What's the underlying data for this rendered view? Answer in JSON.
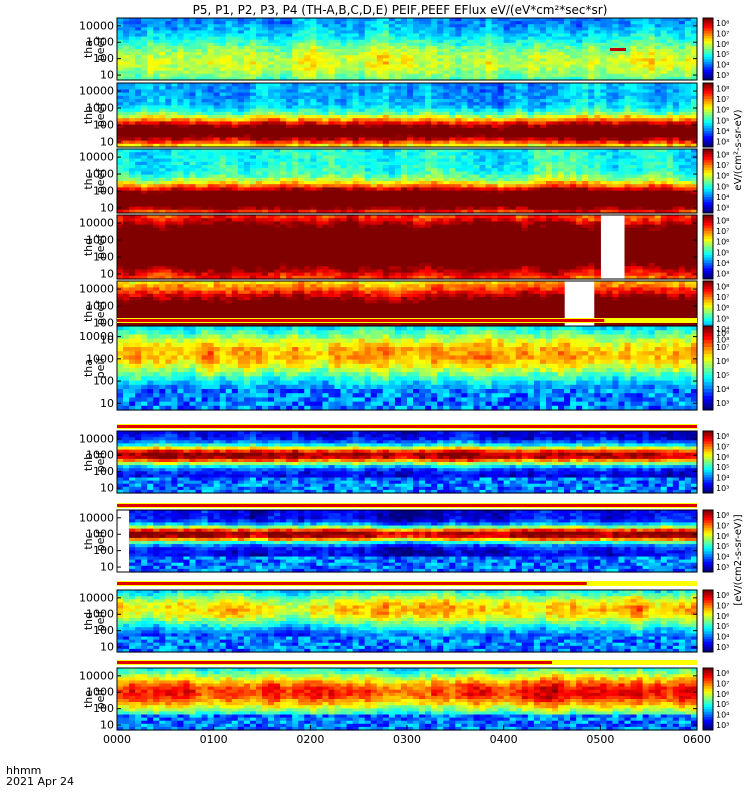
{
  "chart_data": {
    "type": "heatmap",
    "title": "P5, P1, P2, P3, P4 (TH-A,B,C,D,E) PEIF,PEEF EFlux eV/(eV*cm²*sec*sr)",
    "x_ticks": [
      "0000",
      "0100",
      "0200",
      "0300",
      "0400",
      "0500",
      "0600"
    ],
    "x_range": [
      "0000",
      "0600"
    ],
    "x_label_line1": "hhmm",
    "x_label_line2": "2021 Apr 24",
    "y_ticks": [
      "10000",
      "1000",
      "100",
      "10"
    ],
    "y_scale": "log",
    "y_range": [
      5,
      30000
    ],
    "colorbar_ticks_electron": [
      "10⁸",
      "10⁷",
      "10⁶",
      "10⁵",
      "10⁴",
      "10³"
    ],
    "colorbar_ticks_ion": [
      "10⁸",
      "10⁷",
      "10⁶",
      "10⁵",
      "10⁴",
      "10³"
    ],
    "colorbar_label_electron": "eV/(cm²-s-sr-eV)",
    "colorbar_label_ion": "[eV/(cm2-s-sr-eV)]",
    "panels": [
      {
        "probe": "tha",
        "product": "peef",
        "label1": "tha",
        "label2": "peef",
        "species": "electron",
        "peak_log_energy": 1.8,
        "band": 1.6,
        "base": 0.35,
        "floor": 0.25,
        "seed": 11,
        "gaps": [],
        "marker": {
          "x": [
            0.85,
            0.86
          ],
          "y": 3.6
        }
      },
      {
        "probe": "thb",
        "product": "peef",
        "label1": "thb",
        "label2": "peef",
        "species": "electron",
        "peak_log_energy": 1.6,
        "band": 0.9,
        "base": 0.82,
        "floor": 0.3,
        "seed": 23,
        "gaps": []
      },
      {
        "probe": "thc",
        "product": "peef",
        "label1": "thc",
        "label2": "peef",
        "species": "electron",
        "peak_log_energy": 1.5,
        "band": 0.9,
        "base": 0.85,
        "floor": 0.4,
        "seed": 37,
        "gaps": []
      },
      {
        "probe": "thd",
        "product": "peef",
        "label1": "thd",
        "label2": "peef",
        "species": "electron",
        "peak_log_energy": 2.6,
        "band": 1.8,
        "base": 0.72,
        "floor": 0.55,
        "seed": 41,
        "gaps": [
          [
            0.833,
            0.865
          ]
        ]
      },
      {
        "probe": "the",
        "product": "peef",
        "label1": "the",
        "label2": "peef",
        "species": "electron",
        "peak_log_energy": 2.5,
        "band": 1.7,
        "base": 0.7,
        "floor": 0.5,
        "seed": 53,
        "gaps": [
          [
            0.77,
            0.815
          ]
        ]
      },
      {
        "probe": "tha",
        "product": "peif",
        "label1": "tha",
        "label2": "peif",
        "species": "ion",
        "peak_log_energy": 3.2,
        "band": 1.2,
        "base": 0.55,
        "floor": 0.15,
        "seed": 61,
        "gaps": [],
        "bar_to": 0.84
      },
      {
        "probe": "thb",
        "product": "peif",
        "label1": "thb",
        "label2": "peif",
        "species": "ion",
        "peak_log_energy": 3.0,
        "band": 0.6,
        "base": 0.88,
        "floor": 0.1,
        "seed": 71,
        "gaps": [],
        "bar_to": 1.0
      },
      {
        "probe": "thc",
        "product": "peif",
        "label1": "thc",
        "label2": "peif",
        "species": "ion",
        "peak_log_energy": 3.0,
        "band": 0.5,
        "base": 0.9,
        "floor": 0.1,
        "seed": 83,
        "gaps": [
          [
            0.0,
            0.02
          ]
        ],
        "bar_to": 1.0
      },
      {
        "probe": "thd",
        "product": "peif",
        "label1": "thd",
        "label2": "peif",
        "species": "ion",
        "peak_log_energy": 3.3,
        "band": 1.2,
        "base": 0.55,
        "floor": 0.15,
        "seed": 97,
        "gaps": [],
        "bar_to": 0.81
      },
      {
        "probe": "the",
        "product": "peif",
        "label1": "the",
        "label2": "peif",
        "species": "ion",
        "peak_log_energy": 3.0,
        "band": 1.3,
        "base": 0.65,
        "floor": 0.2,
        "seed": 101,
        "gaps": [],
        "bar_to": 0.75
      }
    ]
  }
}
